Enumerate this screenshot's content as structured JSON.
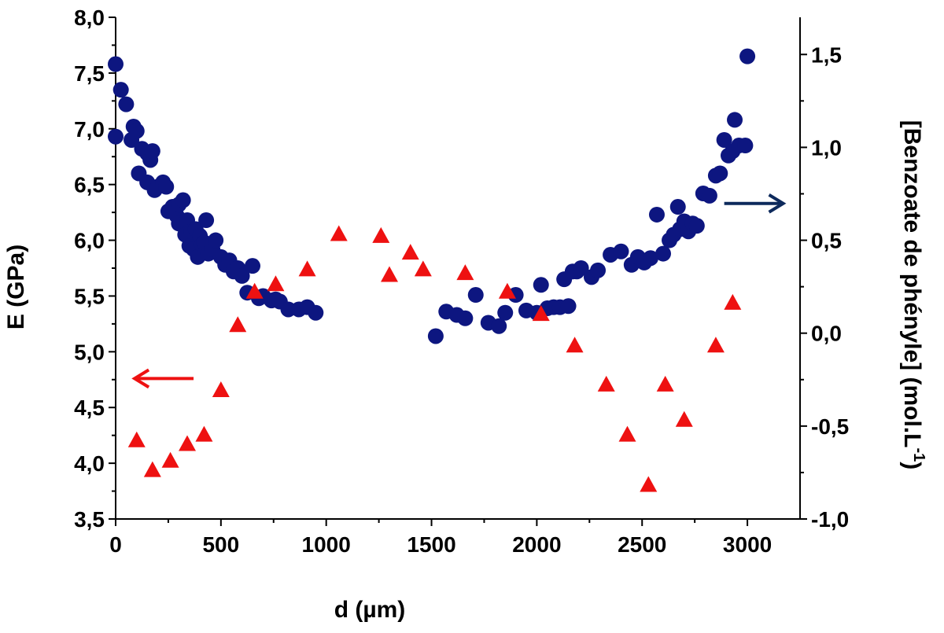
{
  "chart_data": {
    "type": "scatter",
    "xlabel": "d (µm)",
    "ylabel_left": "E (GPa)",
    "ylabel_right": "[Benzoate de phényle] (mol.L",
    "ylabel_right_sup": "-1",
    "ylabel_right_suffix": ")",
    "xlim": [
      0,
      3250
    ],
    "ylim_left": [
      3.5,
      8.0
    ],
    "ylim_right": [
      -1.0,
      1.7
    ],
    "x_ticks": [
      0,
      500,
      1000,
      1500,
      2000,
      2500,
      3000
    ],
    "x_tick_labels": [
      "0",
      "500",
      "1000",
      "1500",
      "2000",
      "2500",
      "3000"
    ],
    "y_left_ticks": [
      3.5,
      4.0,
      4.5,
      5.0,
      5.5,
      6.0,
      6.5,
      7.0,
      7.5,
      8.0
    ],
    "y_left_tick_labels": [
      "3,5",
      "4,0",
      "4,5",
      "5,0",
      "5,5",
      "6,0",
      "6,5",
      "7,0",
      "7,5",
      "8,0"
    ],
    "y_right_ticks": [
      -1.0,
      -0.5,
      0.0,
      0.5,
      1.0,
      1.5
    ],
    "y_right_tick_labels": [
      "-1,0",
      "-0,5",
      "0,0",
      "0,5",
      "1,0",
      "1,5"
    ],
    "grid": false,
    "series": [
      {
        "marker": "circle",
        "color": "#0d1680",
        "axis": "left",
        "points": [
          [
            0,
            7.58
          ],
          [
            0,
            6.93
          ],
          [
            25,
            7.35
          ],
          [
            50,
            7.22
          ],
          [
            75,
            6.9
          ],
          [
            85,
            7.02
          ],
          [
            100,
            6.98
          ],
          [
            110,
            6.6
          ],
          [
            125,
            6.82
          ],
          [
            150,
            6.52
          ],
          [
            150,
            6.78
          ],
          [
            165,
            6.72
          ],
          [
            175,
            6.8
          ],
          [
            185,
            6.45
          ],
          [
            200,
            6.48
          ],
          [
            225,
            6.52
          ],
          [
            240,
            6.48
          ],
          [
            250,
            6.26
          ],
          [
            270,
            6.3
          ],
          [
            290,
            6.22
          ],
          [
            300,
            6.32
          ],
          [
            300,
            6.15
          ],
          [
            320,
            6.36
          ],
          [
            330,
            6.05
          ],
          [
            340,
            6.18
          ],
          [
            350,
            5.95
          ],
          [
            360,
            6.08
          ],
          [
            370,
            5.92
          ],
          [
            380,
            6.1
          ],
          [
            390,
            5.85
          ],
          [
            400,
            6.04
          ],
          [
            410,
            5.96
          ],
          [
            420,
            5.98
          ],
          [
            430,
            6.18
          ],
          [
            440,
            5.88
          ],
          [
            460,
            5.92
          ],
          [
            475,
            6.0
          ],
          [
            500,
            5.85
          ],
          [
            520,
            5.78
          ],
          [
            540,
            5.82
          ],
          [
            560,
            5.72
          ],
          [
            580,
            5.75
          ],
          [
            600,
            5.68
          ],
          [
            625,
            5.53
          ],
          [
            650,
            5.77
          ],
          [
            680,
            5.48
          ],
          [
            700,
            5.5
          ],
          [
            740,
            5.46
          ],
          [
            760,
            5.47
          ],
          [
            780,
            5.45
          ],
          [
            820,
            5.38
          ],
          [
            870,
            5.38
          ],
          [
            910,
            5.4
          ],
          [
            950,
            5.35
          ],
          [
            1520,
            5.14
          ],
          [
            1570,
            5.36
          ],
          [
            1620,
            5.33
          ],
          [
            1660,
            5.3
          ],
          [
            1710,
            5.51
          ],
          [
            1770,
            5.26
          ],
          [
            1820,
            5.23
          ],
          [
            1850,
            5.35
          ],
          [
            1900,
            5.51
          ],
          [
            1950,
            5.37
          ],
          [
            2000,
            5.35
          ],
          [
            2020,
            5.6
          ],
          [
            2050,
            5.39
          ],
          [
            2080,
            5.4
          ],
          [
            2110,
            5.4
          ],
          [
            2130,
            5.65
          ],
          [
            2150,
            5.41
          ],
          [
            2170,
            5.72
          ],
          [
            2190,
            5.72
          ],
          [
            2210,
            5.75
          ],
          [
            2260,
            5.67
          ],
          [
            2290,
            5.73
          ],
          [
            2350,
            5.87
          ],
          [
            2400,
            5.9
          ],
          [
            2450,
            5.78
          ],
          [
            2480,
            5.85
          ],
          [
            2510,
            5.8
          ],
          [
            2540,
            5.84
          ],
          [
            2570,
            6.23
          ],
          [
            2600,
            5.88
          ],
          [
            2630,
            6.0
          ],
          [
            2650,
            6.05
          ],
          [
            2670,
            6.3
          ],
          [
            2680,
            6.1
          ],
          [
            2700,
            6.17
          ],
          [
            2720,
            6.08
          ],
          [
            2740,
            6.15
          ],
          [
            2760,
            6.13
          ],
          [
            2790,
            6.42
          ],
          [
            2820,
            6.4
          ],
          [
            2850,
            6.58
          ],
          [
            2870,
            6.6
          ],
          [
            2890,
            6.9
          ],
          [
            2910,
            6.76
          ],
          [
            2930,
            6.8
          ],
          [
            2940,
            7.08
          ],
          [
            2960,
            6.85
          ],
          [
            2990,
            6.85
          ],
          [
            3000,
            7.65
          ]
        ]
      },
      {
        "marker": "triangle",
        "color": "#ee1111",
        "axis": "right",
        "points": [
          [
            100,
            -0.58
          ],
          [
            175,
            -0.74
          ],
          [
            260,
            -0.69
          ],
          [
            340,
            -0.6
          ],
          [
            420,
            -0.55
          ],
          [
            500,
            -0.31
          ],
          [
            580,
            0.04
          ],
          [
            660,
            0.22
          ],
          [
            760,
            0.26
          ],
          [
            910,
            0.34
          ],
          [
            1060,
            0.53
          ],
          [
            1260,
            0.52
          ],
          [
            1300,
            0.31
          ],
          [
            1400,
            0.43
          ],
          [
            1460,
            0.34
          ],
          [
            1660,
            0.32
          ],
          [
            1860,
            0.22
          ],
          [
            2020,
            0.1
          ],
          [
            2180,
            -0.07
          ],
          [
            2330,
            -0.28
          ],
          [
            2430,
            -0.55
          ],
          [
            2530,
            -0.82
          ],
          [
            2610,
            -0.28
          ],
          [
            2700,
            -0.47
          ],
          [
            2850,
            -0.07
          ],
          [
            2930,
            0.16
          ]
        ]
      }
    ],
    "annotations": [
      {
        "type": "arrow",
        "direction": "left",
        "color": "#ee1111",
        "x": [
          370,
          90
        ],
        "y_left": 4.76
      },
      {
        "type": "arrow",
        "direction": "right",
        "color": "#0d2a5c",
        "x": [
          2890,
          3170
        ],
        "y_left": 6.33
      }
    ]
  }
}
